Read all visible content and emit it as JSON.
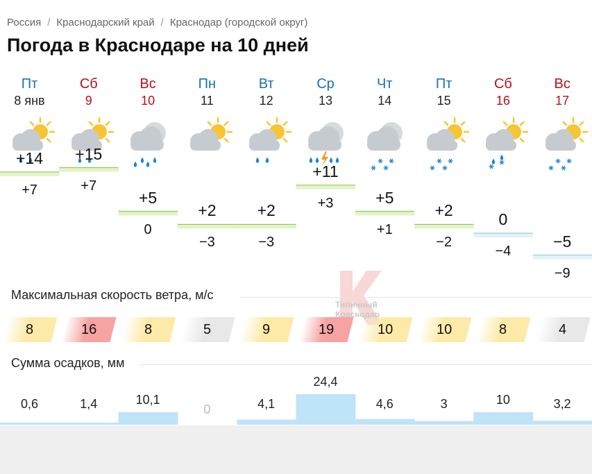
{
  "breadcrumbs": [
    "Россия",
    "Краснодарский край",
    "Краснодар (городской округ)"
  ],
  "title": "Погода в Краснодаре на 10 дней",
  "days": [
    {
      "name": "Пт",
      "date": "8 янв",
      "weekend": false,
      "icon": "partly-cloudy-rain-icon",
      "tmax": "+14",
      "tmin": "+7",
      "tmax_num": 14,
      "tmin_num": 7,
      "wind": "8",
      "wind_level": "moderate",
      "precip": "0,6",
      "precip_num": 0.6
    },
    {
      "name": "Сб",
      "date": "9",
      "weekend": true,
      "icon": "partly-cloudy-rain-icon",
      "tmax": "+15",
      "tmin": "+7",
      "tmax_num": 15,
      "tmin_num": 7,
      "wind": "16",
      "wind_level": "strong",
      "precip": "1,4",
      "precip_num": 1.4
    },
    {
      "name": "Вс",
      "date": "10",
      "weekend": true,
      "icon": "cloudy-rain-icon",
      "tmax": "+5",
      "tmin": "0",
      "tmax_num": 5,
      "tmin_num": 0,
      "wind": "8",
      "wind_level": "moderate",
      "precip": "10,1",
      "precip_num": 10.1
    },
    {
      "name": "Пн",
      "date": "11",
      "weekend": false,
      "icon": "partly-cloudy-icon",
      "tmax": "+2",
      "tmin": "−3",
      "tmax_num": 2,
      "tmin_num": -3,
      "wind": "5",
      "wind_level": "calm",
      "precip": "0",
      "precip_num": 0
    },
    {
      "name": "Вт",
      "date": "12",
      "weekend": false,
      "icon": "partly-cloudy-rain-icon",
      "tmax": "+2",
      "tmin": "−3",
      "tmax_num": 2,
      "tmin_num": -3,
      "wind": "9",
      "wind_level": "moderate",
      "precip": "4,1",
      "precip_num": 4.1
    },
    {
      "name": "Ср",
      "date": "13",
      "weekend": false,
      "icon": "thunderstorm-rain-icon",
      "tmax": "+11",
      "tmin": "+3",
      "tmax_num": 11,
      "tmin_num": 3,
      "wind": "19",
      "wind_level": "strong",
      "precip": "24,4",
      "precip_num": 24.4
    },
    {
      "name": "Чт",
      "date": "14",
      "weekend": false,
      "icon": "cloudy-snow-icon",
      "tmax": "+5",
      "tmin": "+1",
      "tmax_num": 5,
      "tmin_num": 1,
      "wind": "10",
      "wind_level": "moderate",
      "precip": "4,6",
      "precip_num": 4.6
    },
    {
      "name": "Пт",
      "date": "15",
      "weekend": false,
      "icon": "partly-cloudy-snow-icon",
      "tmax": "+2",
      "tmin": "−2",
      "tmax_num": 2,
      "tmin_num": -2,
      "wind": "10",
      "wind_level": "moderate",
      "precip": "3",
      "precip_num": 3
    },
    {
      "name": "Сб",
      "date": "16",
      "weekend": true,
      "icon": "partly-cloudy-rain-snow-icon",
      "tmax": "0",
      "tmin": "−4",
      "tmax_num": 0,
      "tmin_num": -4,
      "wind": "8",
      "wind_level": "moderate",
      "precip": "10",
      "precip_num": 10
    },
    {
      "name": "Вс",
      "date": "17",
      "weekend": true,
      "icon": "partly-cloudy-snow-icon",
      "tmax": "−5",
      "tmin": "−9",
      "tmax_num": -5,
      "tmin_num": -9,
      "wind": "4",
      "wind_level": "calm",
      "precip": "3,2",
      "precip_num": 3.2
    }
  ],
  "wind_label": "Максимальная скорость ветра, м/с",
  "precip_label": "Сумма осадков, мм",
  "watermark_text": [
    "Типичный",
    "Краснодар"
  ],
  "colors": {
    "weekday": "#1b6fb5",
    "weekend": "#b0131b",
    "wind_calm": "#e8e8e8",
    "wind_moderate": "#fdeaa8",
    "wind_strong": "#f7a3a3",
    "temp_warm_fill": "#e4f3c9",
    "temp_warm_line": "#8fcd55",
    "temp_cold_fill": "#e3f3f7",
    "temp_cold_line": "#8fd5e7",
    "precip_fill": "#bfe3f7",
    "sun": "#f7c531",
    "cloud": "#c6cbd0",
    "drop": "#1a85d6",
    "bolt": "#f39a1e"
  }
}
